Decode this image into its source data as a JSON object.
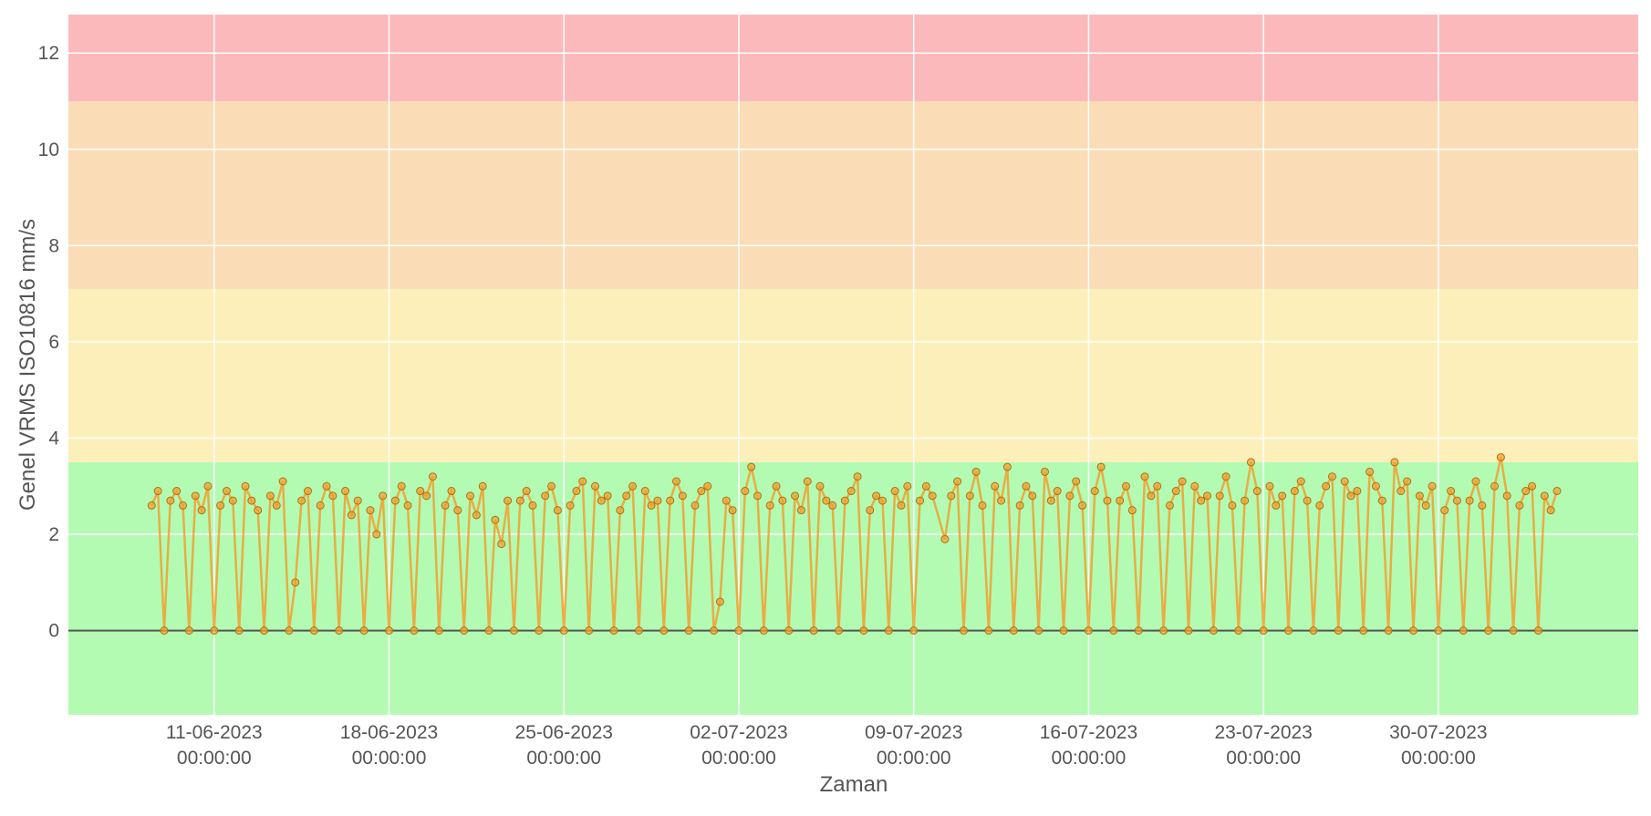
{
  "chart_data": {
    "type": "line",
    "xlabel": "Zaman",
    "ylabel": "Genel VRMS ISO10816 mm/s",
    "xlim": [
      "2023-06-05T04:00",
      "2023-08-07T00:00"
    ],
    "xticks": [
      {
        "value": "2023-06-11T00:00",
        "label": "11-06-2023 00:00:00"
      },
      {
        "value": "2023-06-18T00:00",
        "label": "18-06-2023 00:00:00"
      },
      {
        "value": "2023-06-25T00:00",
        "label": "25-06-2023 00:00:00"
      },
      {
        "value": "2023-07-02T00:00",
        "label": "02-07-2023 00:00:00"
      },
      {
        "value": "2023-07-09T00:00",
        "label": "09-07-2023 00:00:00"
      },
      {
        "value": "2023-07-16T00:00",
        "label": "16-07-2023 00:00:00"
      },
      {
        "value": "2023-07-23T00:00",
        "label": "23-07-2023 00:00:00"
      },
      {
        "value": "2023-07-30T00:00",
        "label": "30-07-2023 00:00:00"
      }
    ],
    "ylim": [
      -1.75,
      12.8
    ],
    "yticks": [
      0,
      2,
      4,
      6,
      8,
      10,
      12
    ],
    "grid": true,
    "bands": [
      {
        "from": -1.75,
        "to": 3.5,
        "color": "#b3fbb3"
      },
      {
        "from": 3.5,
        "to": 7.1,
        "color": "#fcefb9"
      },
      {
        "from": 7.1,
        "to": 11,
        "color": "#fadcb7"
      },
      {
        "from": 11,
        "to": 12.8,
        "color": "#fcb9bb"
      }
    ],
    "series": [
      {
        "name": "VRMS",
        "color": "#f0a030",
        "days": [
          "2023-06-09",
          "2023-06-10",
          "2023-06-11",
          "2023-06-12",
          "2023-06-13",
          "2023-06-14",
          "2023-06-15",
          "2023-06-16",
          "2023-06-17",
          "2023-06-18",
          "2023-06-19",
          "2023-06-20",
          "2023-06-21",
          "2023-06-22",
          "2023-06-23",
          "2023-06-24",
          "2023-06-25",
          "2023-06-26",
          "2023-06-27",
          "2023-06-28",
          "2023-06-29",
          "2023-06-30",
          "2023-07-01",
          "2023-07-02",
          "2023-07-03",
          "2023-07-04",
          "2023-07-05",
          "2023-07-06",
          "2023-07-07",
          "2023-07-08",
          "2023-07-09",
          "2023-07-10",
          "2023-07-11",
          "2023-07-12",
          "2023-07-13",
          "2023-07-14",
          "2023-07-15",
          "2023-07-16",
          "2023-07-17",
          "2023-07-18",
          "2023-07-19",
          "2023-07-20",
          "2023-07-21",
          "2023-07-22",
          "2023-07-23",
          "2023-07-24",
          "2023-07-25",
          "2023-07-26",
          "2023-07-27",
          "2023-07-28",
          "2023-07-29",
          "2023-07-30",
          "2023-07-31",
          "2023-08-01",
          "2023-08-02",
          "2023-08-03"
        ],
        "x": [],
        "values": []
      }
    ]
  }
}
